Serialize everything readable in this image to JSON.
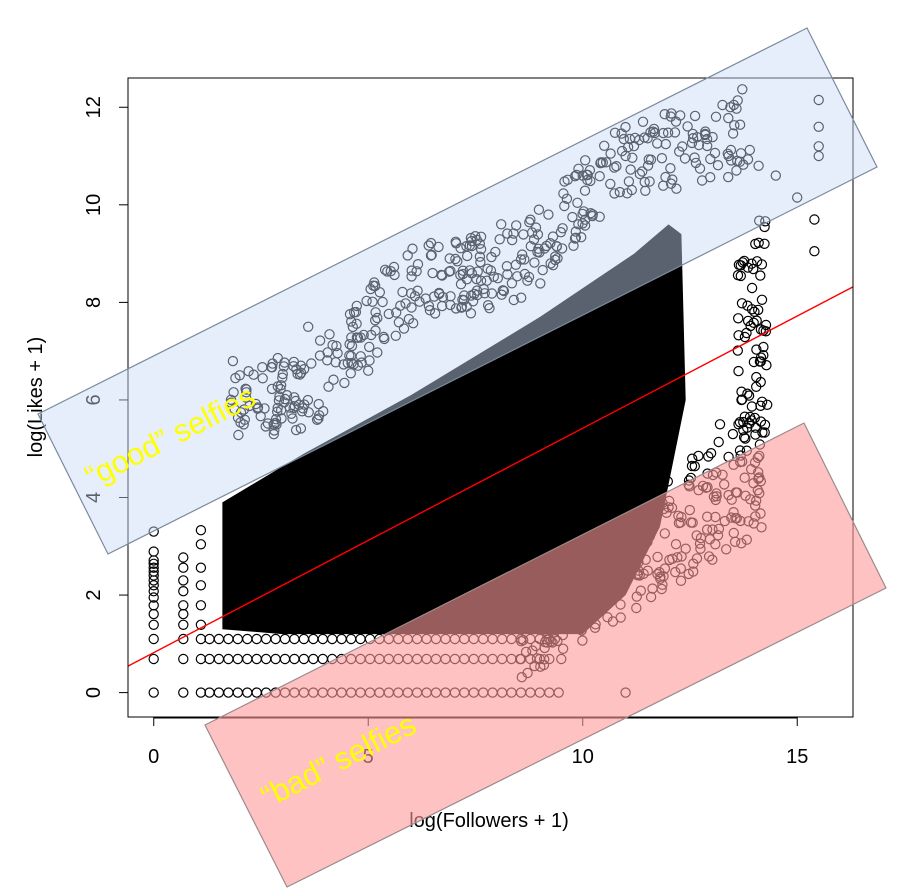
{
  "chart_data": {
    "type": "scatter",
    "title": "",
    "xlabel": "log(Followers + 1)",
    "ylabel": "log(Likes + 1)",
    "xlim": [
      -0.6,
      16.3
    ],
    "ylim": [
      -0.5,
      12.6
    ],
    "xticks": [
      0,
      5,
      10,
      15
    ],
    "yticks": [
      0,
      2,
      4,
      6,
      8,
      10,
      12
    ],
    "grid": false,
    "point_color": "#000000",
    "fit_line": {
      "name": "",
      "color": "#ff0000",
      "intercept": 0.82,
      "slope": 0.46
    },
    "scatter_points": [
      [
        0,
        0
      ],
      [
        0,
        0.69
      ],
      [
        0,
        1.1
      ],
      [
        0,
        1.39
      ],
      [
        0,
        1.61
      ],
      [
        0,
        1.79
      ],
      [
        0,
        1.95
      ],
      [
        0,
        2.08
      ],
      [
        0,
        2.2
      ],
      [
        0,
        2.3
      ],
      [
        0,
        2.4
      ],
      [
        0,
        2.48
      ],
      [
        0,
        2.56
      ],
      [
        0,
        2.64
      ],
      [
        0,
        2.71
      ],
      [
        0,
        2.89
      ],
      [
        0,
        3.3
      ],
      [
        0.69,
        0
      ],
      [
        0.69,
        0.69
      ],
      [
        0.69,
        1.1
      ],
      [
        0.69,
        1.39
      ],
      [
        0.69,
        1.61
      ],
      [
        0.69,
        1.79
      ],
      [
        0.69,
        2.08
      ],
      [
        0.69,
        2.3
      ],
      [
        0.69,
        2.56
      ],
      [
        0.69,
        2.77
      ],
      [
        1.1,
        0
      ],
      [
        1.1,
        0.69
      ],
      [
        1.1,
        1.1
      ],
      [
        1.1,
        1.39
      ],
      [
        1.1,
        1.79
      ],
      [
        1.1,
        2.2
      ],
      [
        1.1,
        2.56
      ],
      [
        1.1,
        3.04
      ],
      [
        1.1,
        3.33
      ],
      [
        3.6,
        7.5
      ],
      [
        4.6,
        6.9
      ],
      [
        5.0,
        6.6
      ],
      [
        6.5,
        8.6
      ],
      [
        6.9,
        8.9
      ],
      [
        7.6,
        9.2
      ],
      [
        8.1,
        9.6
      ],
      [
        9.2,
        9.8
      ],
      [
        9.9,
        9.6
      ],
      [
        10.0,
        10.6
      ],
      [
        11.0,
        11.0
      ],
      [
        11.1,
        11.35
      ],
      [
        12.9,
        11.35
      ],
      [
        13.4,
        11.0
      ],
      [
        13.6,
        10.9
      ],
      [
        14.1,
        10.8
      ],
      [
        14.5,
        10.6
      ],
      [
        15.5,
        12.15
      ],
      [
        15.5,
        11.6
      ],
      [
        15.5,
        11.2
      ],
      [
        15.5,
        11.0
      ],
      [
        15.4,
        9.7
      ],
      [
        15.4,
        9.05
      ],
      [
        15.0,
        10.15
      ],
      [
        13.2,
        5.5
      ],
      [
        13.5,
        5.3
      ],
      [
        13.9,
        5.65
      ],
      [
        14.3,
        5.9
      ],
      [
        13.7,
        6.0
      ],
      [
        12.7,
        4.15
      ],
      [
        13.1,
        3.95
      ],
      [
        13.4,
        4.05
      ],
      [
        13.6,
        4.1
      ],
      [
        12.4,
        2.95
      ],
      [
        11.3,
        2.5
      ],
      [
        11.0,
        2.6
      ],
      [
        10.5,
        2.2
      ],
      [
        10.3,
        1.4
      ],
      [
        11.0,
        0
      ],
      [
        9.5,
        0.69
      ],
      [
        12.0,
        3.8
      ],
      [
        12.3,
        3.6
      ]
    ]
  },
  "annotations": {
    "good_label": "“good” selfies",
    "bad_label": "“bad” selfies",
    "good_color": "#c8daf7",
    "bad_color": "#ff9a9a",
    "label_color": "#ffff00"
  }
}
